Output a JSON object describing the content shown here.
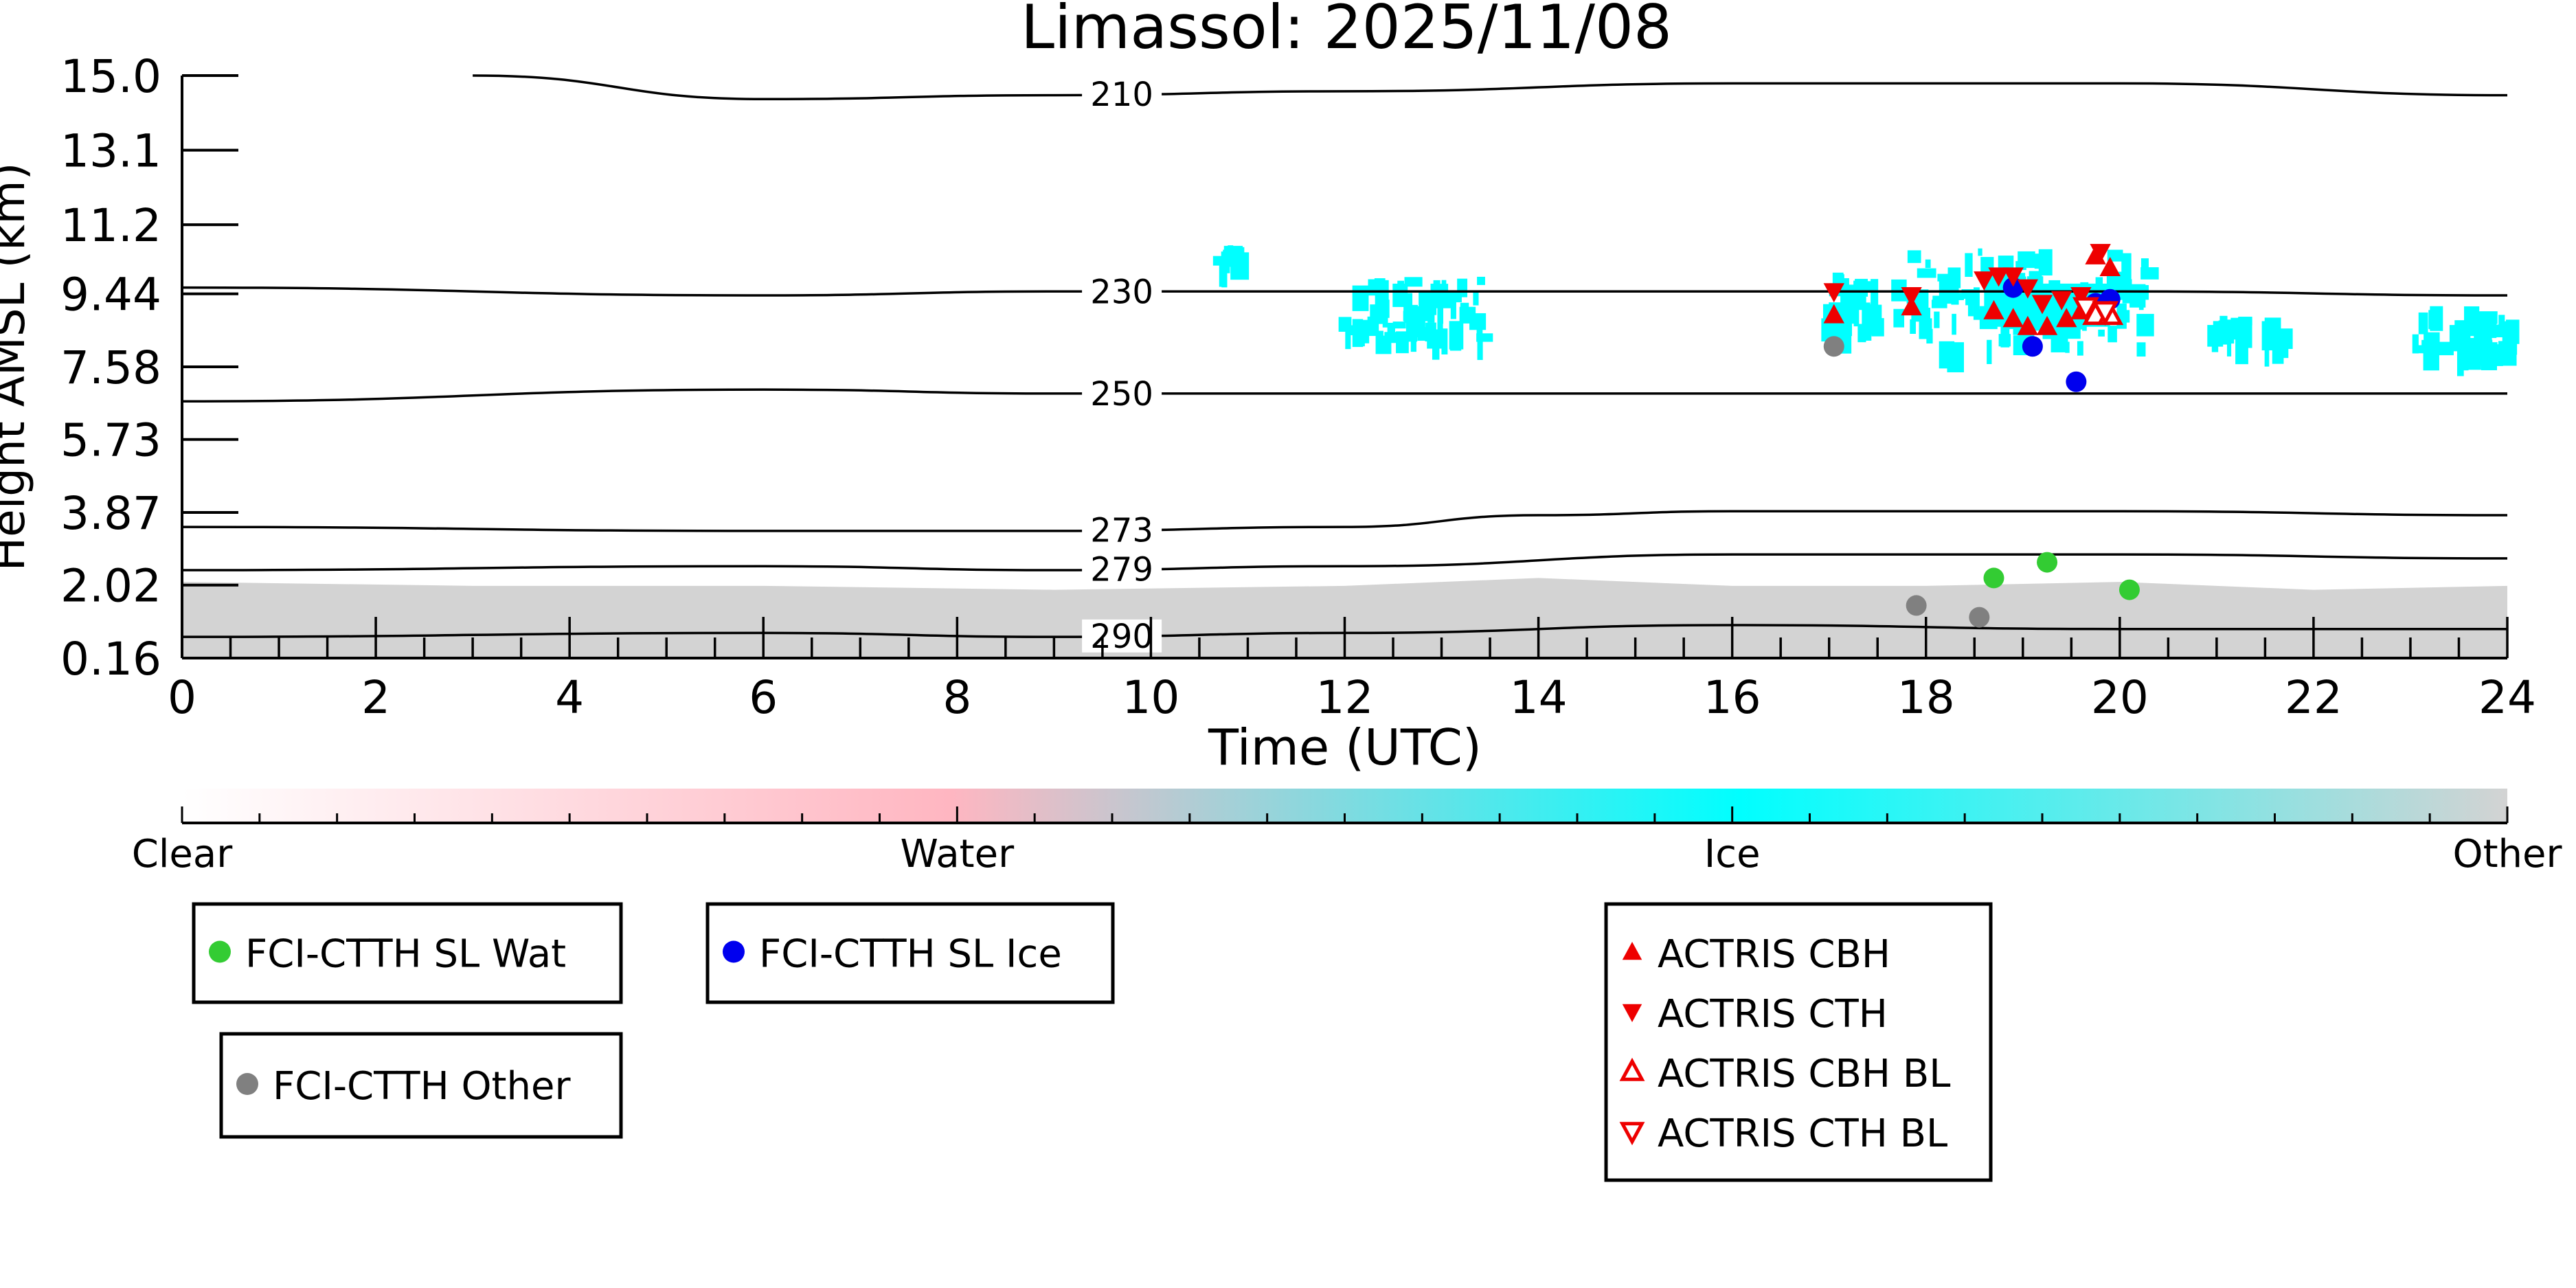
{
  "chart_data": {
    "type": "scatter",
    "title": "Limassol: 2025/11/08",
    "xlabel": "Time (UTC)",
    "ylabel": "Height AMSL (km)",
    "xlim": [
      0,
      24
    ],
    "ylim": [
      0.16,
      15.0
    ],
    "x_ticks": [
      "0",
      "2",
      "4",
      "6",
      "8",
      "10",
      "12",
      "14",
      "16",
      "18",
      "20",
      "22",
      "24"
    ],
    "y_ticks": [
      "0.16",
      "2.02",
      "3.87",
      "5.73",
      "7.58",
      "9.44",
      "11.2",
      "13.1",
      "15.0"
    ],
    "y_tick_values": [
      0.16,
      2.02,
      3.87,
      5.73,
      7.58,
      9.44,
      11.2,
      13.1,
      15.0
    ],
    "grid": false,
    "colors": {
      "water": "#ffb6c1",
      "ice": "#00ffff",
      "other": "#d3d3d3",
      "wat_marker": "#33cc33",
      "ice_marker": "#0000ee",
      "other_marker": "#808080",
      "actris": "#ee0000"
    },
    "temperature_contours": [
      {
        "label": "210",
        "points": [
          [
            3.0,
            15.0
          ],
          [
            6,
            14.4
          ],
          [
            9,
            14.5
          ],
          [
            12,
            14.6
          ],
          [
            16,
            14.8
          ],
          [
            20,
            14.8
          ],
          [
            24,
            14.5
          ]
        ]
      },
      {
        "label": "230",
        "points": [
          [
            0,
            9.6
          ],
          [
            6,
            9.4
          ],
          [
            9,
            9.5
          ],
          [
            12,
            9.5
          ],
          [
            16,
            9.5
          ],
          [
            20,
            9.5
          ],
          [
            24,
            9.4
          ]
        ]
      },
      {
        "label": "250",
        "points": [
          [
            0,
            6.7
          ],
          [
            6,
            7.0
          ],
          [
            9,
            6.9
          ],
          [
            12,
            6.9
          ],
          [
            16,
            6.9
          ],
          [
            20,
            6.9
          ],
          [
            24,
            6.9
          ]
        ]
      },
      {
        "label": "273",
        "points": [
          [
            0,
            3.5
          ],
          [
            6,
            3.4
          ],
          [
            9,
            3.4
          ],
          [
            12,
            3.5
          ],
          [
            14,
            3.8
          ],
          [
            16,
            3.9
          ],
          [
            20,
            3.9
          ],
          [
            24,
            3.8
          ]
        ]
      },
      {
        "label": "279",
        "points": [
          [
            0,
            2.4
          ],
          [
            6,
            2.5
          ],
          [
            9,
            2.4
          ],
          [
            12,
            2.5
          ],
          [
            16,
            2.8
          ],
          [
            20,
            2.8
          ],
          [
            24,
            2.7
          ]
        ]
      },
      {
        "label": "290",
        "points": [
          [
            0,
            0.7
          ],
          [
            6,
            0.8
          ],
          [
            9,
            0.7
          ],
          [
            12,
            0.8
          ],
          [
            16,
            1.0
          ],
          [
            20,
            0.9
          ],
          [
            24,
            0.9
          ]
        ]
      }
    ],
    "series": [
      {
        "name": "FCI-CTTH SL Wat",
        "marker": "circle",
        "x": [
          18.7,
          19.25,
          20.1
        ],
        "y": [
          2.2,
          2.6,
          1.9
        ]
      },
      {
        "name": "FCI-CTTH SL Ice",
        "marker": "circle",
        "x": [
          18.9,
          19.1,
          19.55,
          19.75,
          19.9
        ],
        "y": [
          9.6,
          8.1,
          7.2,
          9.2,
          9.3
        ]
      },
      {
        "name": "FCI-CTTH Other",
        "marker": "circle",
        "x": [
          17.05,
          17.9,
          18.55
        ],
        "y": [
          8.1,
          1.5,
          1.2
        ]
      },
      {
        "name": "ACTRIS CBH",
        "marker": "triangle-up",
        "x": [
          17.05,
          17.85,
          18.7,
          18.9,
          19.05,
          19.25,
          19.45,
          19.6,
          19.75,
          19.9
        ],
        "y": [
          8.9,
          9.1,
          9.0,
          8.8,
          8.6,
          8.6,
          8.8,
          9.0,
          10.4,
          10.1
        ]
      },
      {
        "name": "ACTRIS CTH",
        "marker": "triangle-down",
        "x": [
          17.05,
          17.85,
          18.6,
          18.75,
          18.9,
          19.05,
          19.2,
          19.4,
          19.6,
          19.8
        ],
        "y": [
          9.5,
          9.4,
          9.8,
          9.9,
          9.9,
          9.6,
          9.2,
          9.3,
          9.4,
          10.5
        ]
      },
      {
        "name": "ACTRIS CBH BL",
        "marker": "triangle-up-open",
        "x": [
          19.75,
          19.9
        ],
        "y": [
          8.9,
          8.9
        ]
      },
      {
        "name": "ACTRIS CTH BL",
        "marker": "triangle-down-open",
        "x": [
          19.65,
          19.85
        ],
        "y": [
          9.1,
          9.0
        ]
      }
    ],
    "colorbar": {
      "labels": [
        "Clear",
        "Water",
        "Ice",
        "Other"
      ],
      "colors": [
        "#ffffff",
        "#ffb6c1",
        "#00ffff",
        "#d3d3d3"
      ]
    },
    "ice_cloud_patches": [
      {
        "x": [
          16.9,
          17.7
        ],
        "y": [
          8.6,
          10.0
        ]
      },
      {
        "x": [
          17.8,
          20.3
        ],
        "y": [
          8.2,
          10.6
        ]
      },
      {
        "x": [
          11.9,
          13.4
        ],
        "y": [
          8.3,
          9.9
        ]
      },
      {
        "x": [
          10.6,
          10.9
        ],
        "y": [
          10.3,
          10.7
        ]
      },
      {
        "x": [
          20.9,
          21.6
        ],
        "y": [
          8.3,
          8.9
        ]
      },
      {
        "x": [
          23.0,
          24.0
        ],
        "y": [
          8.0,
          9.2
        ]
      }
    ]
  }
}
